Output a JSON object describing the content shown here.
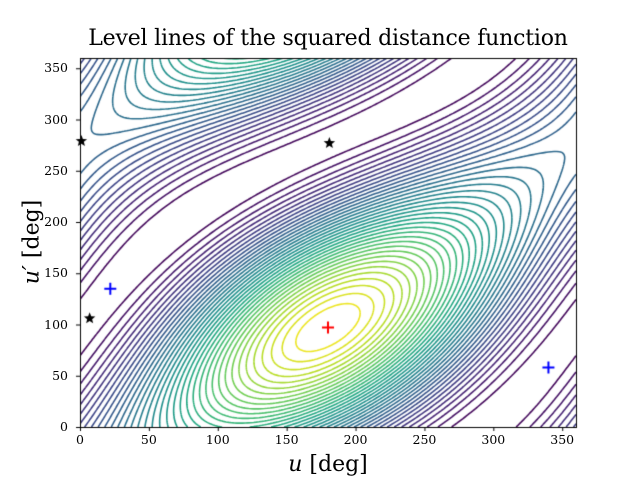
{
  "chart_data": {
    "type": "contour",
    "title": "Level lines of the squared distance function",
    "xlabel": "u [deg]",
    "ylabel": "u′ [deg]",
    "xlim": [
      0,
      360
    ],
    "ylim": [
      0,
      360
    ],
    "xticks": [
      0,
      50,
      100,
      150,
      200,
      250,
      300,
      350
    ],
    "yticks": [
      0,
      50,
      100,
      150,
      200,
      250,
      300,
      350
    ],
    "colormap": "viridis",
    "minimum": {
      "u": 180,
      "u_prime": 97,
      "marker": "+",
      "color": "#ff0000"
    },
    "blue_markers": [
      {
        "u": 22,
        "u_prime": 135,
        "marker": "+",
        "color": "#0000ff"
      },
      {
        "u": 340,
        "u_prime": 58,
        "marker": "+",
        "color": "#0000ff"
      }
    ],
    "star_markers": [
      {
        "u": 1,
        "u_prime": 279,
        "marker": "*",
        "color": "#000000"
      },
      {
        "u": 181,
        "u_prime": 277,
        "marker": "*",
        "color": "#000000"
      },
      {
        "u": 7,
        "u_prime": 106,
        "marker": "*",
        "color": "#000000"
      }
    ],
    "grid": false,
    "legend": null
  },
  "axes": {
    "x_label_var": "u",
    "x_label_unit": " [deg]",
    "y_label_var": "u′",
    "y_label_unit": " [deg]"
  }
}
